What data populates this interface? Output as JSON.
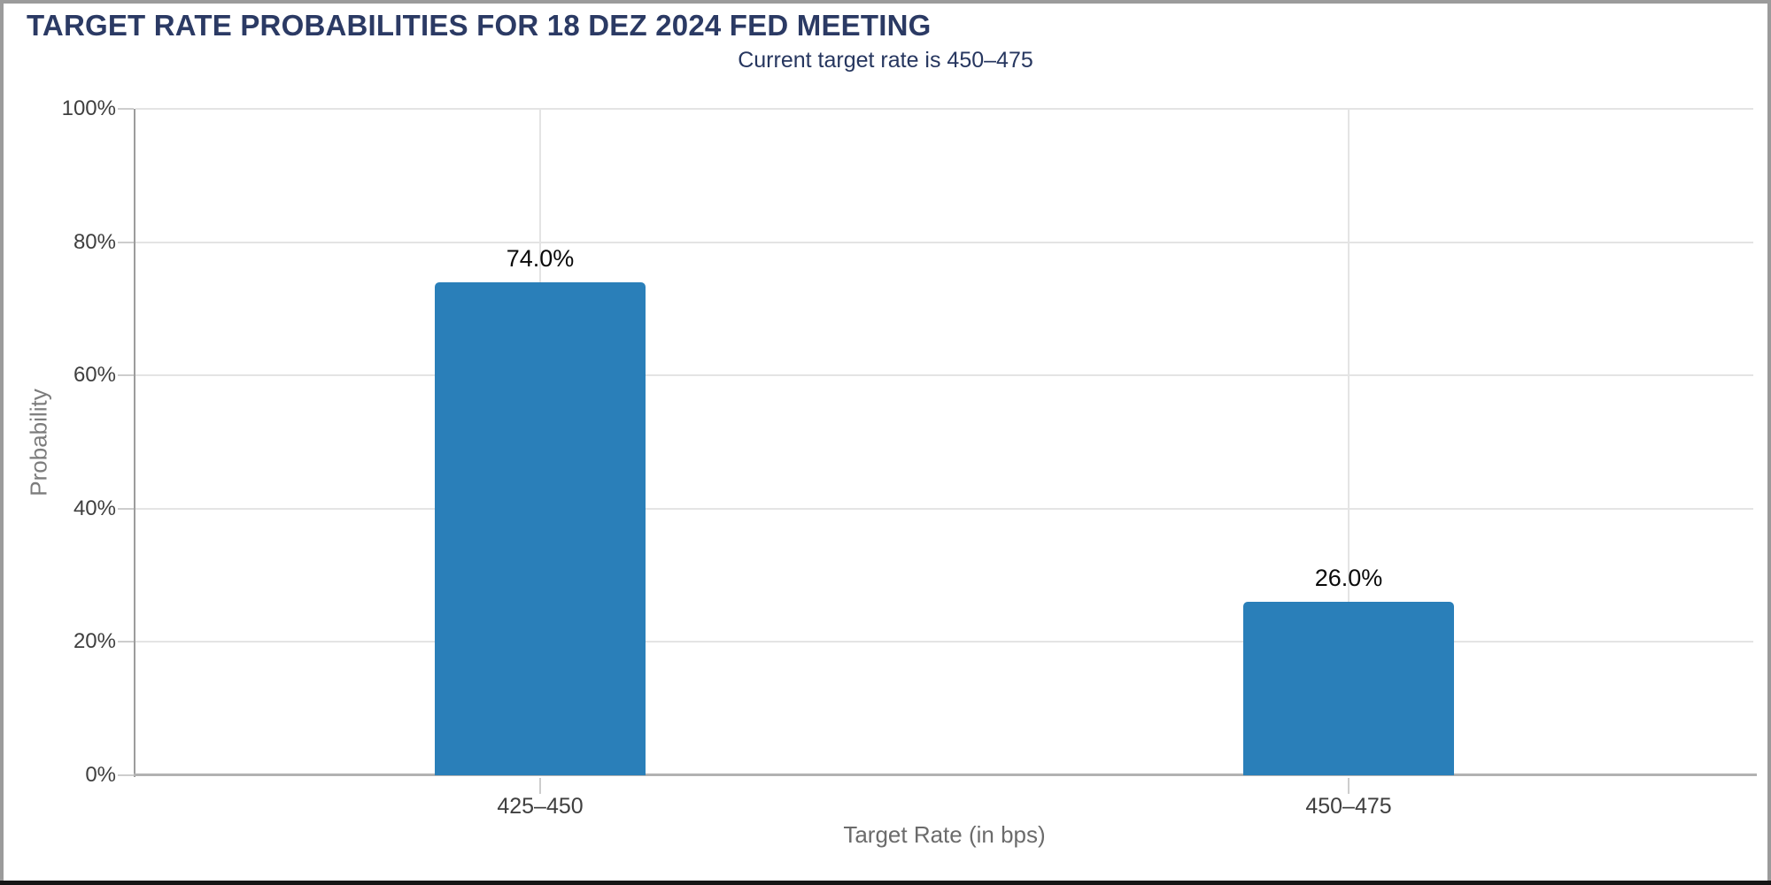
{
  "chart_data": {
    "type": "bar",
    "title": "TARGET RATE PROBABILITIES FOR 18 DEZ 2024 FED MEETING",
    "subtitle": "Current target rate is 450–475",
    "categories": [
      "425–450",
      "450–475"
    ],
    "values": [
      74.0,
      26.0
    ],
    "value_labels": [
      "74.0%",
      "26.0%"
    ],
    "xlabel": "Target Rate (in bps)",
    "ylabel": "Probability",
    "ylim": [
      0,
      100
    ],
    "yticks": [
      0,
      20,
      40,
      60,
      80,
      100
    ],
    "ytick_labels": [
      "0%",
      "20%",
      "40%",
      "60%",
      "80%",
      "100%"
    ],
    "grid": true,
    "legend_position": "none",
    "colors": {
      "bar": "#2a7fb9",
      "title_text": "#2b3a64",
      "subtitle_text": "#26365f",
      "axis_line": "#9c9c9c",
      "gridline": "#e4e4e4",
      "tick_label": "#3f3f3f",
      "axis_title_text": "#6b6b6b",
      "frame_border": "#9b9b9b"
    }
  }
}
